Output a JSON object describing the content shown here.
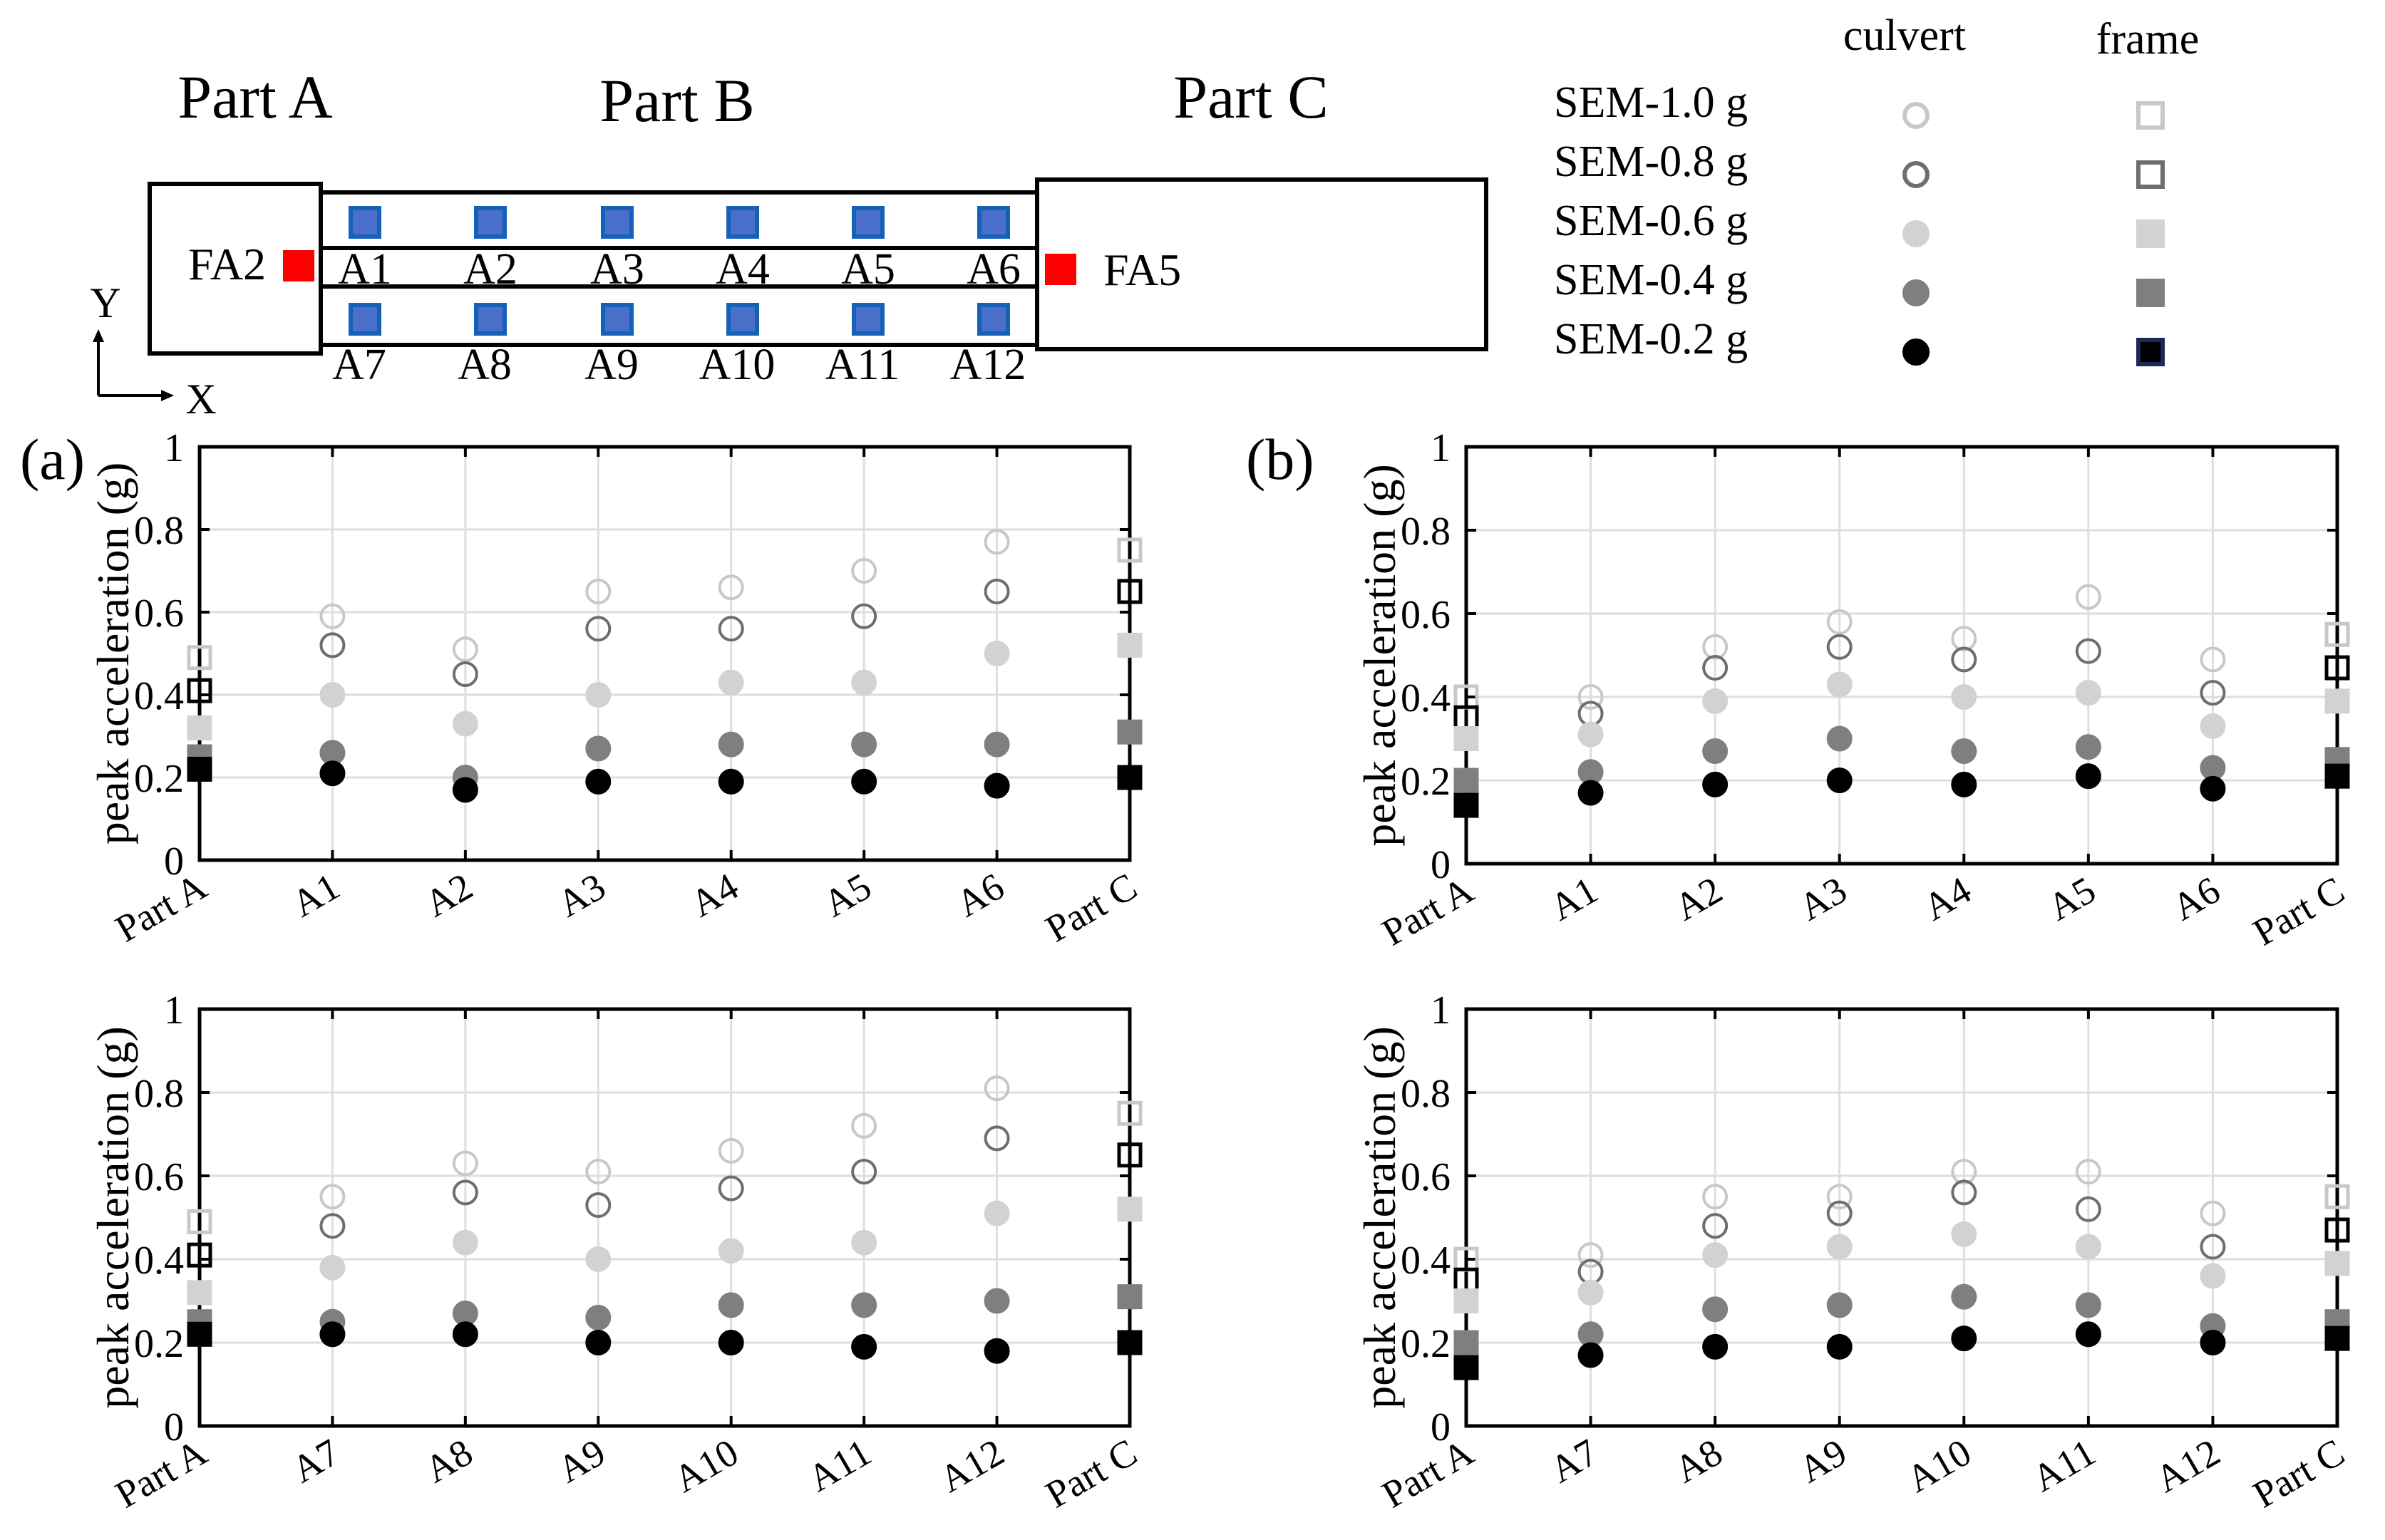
{
  "legend": {
    "col_headers": [
      "culvert",
      "frame"
    ],
    "rows": [
      "SEM-1.0 g",
      "SEM-0.8 g",
      "SEM-0.6 g",
      "SEM-0.4 g",
      "SEM-0.2 g"
    ]
  },
  "diagram": {
    "part_labels": [
      "Part A",
      "Part B",
      "Part C"
    ],
    "fa_labels": [
      "FA2",
      "FA5"
    ],
    "top_row_labels": [
      "A1",
      "A2",
      "A3",
      "A4",
      "A5",
      "A6"
    ],
    "bottom_row_labels": [
      "A7",
      "A8",
      "A9",
      "A10",
      "A11",
      "A12"
    ],
    "axis_labels": [
      "Y",
      "X"
    ]
  },
  "panel_labels": [
    "(a)",
    "(b)"
  ],
  "series_styles": [
    {
      "name": "SEM-1.0 g",
      "circle_fill": "none",
      "circle_stroke": "#c8c8c8",
      "square_fill": "none",
      "square_stroke": "#c8c8c8"
    },
    {
      "name": "SEM-0.8 g",
      "circle_fill": "none",
      "circle_stroke": "#6e6e6e",
      "square_fill": "none",
      "square_stroke": "#000000"
    },
    {
      "name": "SEM-0.6 g",
      "circle_fill": "#d2d2d2",
      "circle_stroke": "#d2d2d2",
      "square_fill": "#d2d2d2",
      "square_stroke": "#d2d2d2"
    },
    {
      "name": "SEM-0.4 g",
      "circle_fill": "#7f7f7f",
      "circle_stroke": "#7f7f7f",
      "square_fill": "#7f7f7f",
      "square_stroke": "#7f7f7f"
    },
    {
      "name": "SEM-0.2 g",
      "circle_fill": "#000000",
      "circle_stroke": "#000000",
      "square_fill": "#000000",
      "square_stroke": "#000000"
    }
  ],
  "chart_data": [
    {
      "type": "scatter",
      "panel": "(a) top",
      "ylabel": "peak acceleration (g)",
      "ylim": [
        0,
        1
      ],
      "yticks": [
        "0",
        "0.2",
        "0.4",
        "0.6",
        "0.8",
        "1"
      ],
      "grid": true,
      "categories": [
        "Part A",
        "A1",
        "A2",
        "A3",
        "A4",
        "A5",
        "A6",
        "Part C"
      ],
      "series": [
        {
          "name": "SEM-1.0 g",
          "values": [
            0.49,
            0.59,
            0.51,
            0.65,
            0.66,
            0.7,
            0.77,
            0.75
          ]
        },
        {
          "name": "SEM-0.8 g",
          "values": [
            0.41,
            0.52,
            0.45,
            0.56,
            0.56,
            0.59,
            0.65,
            0.65
          ]
        },
        {
          "name": "SEM-0.6 g",
          "values": [
            0.32,
            0.4,
            0.33,
            0.4,
            0.43,
            0.43,
            0.5,
            0.52
          ]
        },
        {
          "name": "SEM-0.4 g",
          "values": [
            0.25,
            0.26,
            0.2,
            0.27,
            0.28,
            0.28,
            0.28,
            0.31
          ]
        },
        {
          "name": "SEM-0.2 g",
          "values": [
            0.22,
            0.21,
            0.17,
            0.19,
            0.19,
            0.19,
            0.18,
            0.2
          ]
        }
      ]
    },
    {
      "type": "scatter",
      "panel": "(b) top",
      "ylabel": "peak acceleration (g)",
      "ylim": [
        0,
        1
      ],
      "yticks": [
        "0",
        "0.2",
        "0.4",
        "0.6",
        "0.8",
        "1"
      ],
      "grid": true,
      "categories": [
        "Part A",
        "A1",
        "A2",
        "A3",
        "A4",
        "A5",
        "A6",
        "Part C"
      ],
      "series": [
        {
          "name": "SEM-1.0 g",
          "values": [
            0.4,
            0.4,
            0.52,
            0.58,
            0.54,
            0.64,
            0.49,
            0.55
          ]
        },
        {
          "name": "SEM-0.8 g",
          "values": [
            0.35,
            0.36,
            0.47,
            0.52,
            0.49,
            0.51,
            0.41,
            0.47
          ]
        },
        {
          "name": "SEM-0.6 g",
          "values": [
            0.3,
            0.31,
            0.39,
            0.43,
            0.4,
            0.41,
            0.33,
            0.39
          ]
        },
        {
          "name": "SEM-0.4 g",
          "values": [
            0.2,
            0.22,
            0.27,
            0.3,
            0.27,
            0.28,
            0.23,
            0.25
          ]
        },
        {
          "name": "SEM-0.2 g",
          "values": [
            0.14,
            0.17,
            0.19,
            0.2,
            0.19,
            0.21,
            0.18,
            0.21
          ]
        }
      ]
    },
    {
      "type": "scatter",
      "panel": "(a) bottom",
      "ylabel": "peak acceleration (g)",
      "ylim": [
        0,
        1
      ],
      "yticks": [
        "0",
        "0.2",
        "0.4",
        "0.6",
        "0.8",
        "1"
      ],
      "grid": true,
      "categories": [
        "Part A",
        "A7",
        "A8",
        "A9",
        "A10",
        "A11",
        "A12",
        "Part C"
      ],
      "series": [
        {
          "name": "SEM-1.0 g",
          "values": [
            0.49,
            0.55,
            0.63,
            0.61,
            0.66,
            0.72,
            0.81,
            0.75
          ]
        },
        {
          "name": "SEM-0.8 g",
          "values": [
            0.41,
            0.48,
            0.56,
            0.53,
            0.57,
            0.61,
            0.69,
            0.65
          ]
        },
        {
          "name": "SEM-0.6 g",
          "values": [
            0.32,
            0.38,
            0.44,
            0.4,
            0.42,
            0.44,
            0.51,
            0.52
          ]
        },
        {
          "name": "SEM-0.4 g",
          "values": [
            0.25,
            0.25,
            0.27,
            0.26,
            0.29,
            0.29,
            0.3,
            0.31
          ]
        },
        {
          "name": "SEM-0.2 g",
          "values": [
            0.22,
            0.22,
            0.22,
            0.2,
            0.2,
            0.19,
            0.18,
            0.2
          ]
        }
      ]
    },
    {
      "type": "scatter",
      "panel": "(b) bottom",
      "ylabel": "peak acceleration (g)",
      "ylim": [
        0,
        1
      ],
      "yticks": [
        "0",
        "0.2",
        "0.4",
        "0.6",
        "0.8",
        "1"
      ],
      "grid": true,
      "categories": [
        "Part A",
        "A7",
        "A8",
        "A9",
        "A10",
        "A11",
        "A12",
        "Part C"
      ],
      "series": [
        {
          "name": "SEM-1.0 g",
          "values": [
            0.4,
            0.41,
            0.55,
            0.55,
            0.61,
            0.61,
            0.51,
            0.55
          ]
        },
        {
          "name": "SEM-0.8 g",
          "values": [
            0.35,
            0.37,
            0.48,
            0.51,
            0.56,
            0.52,
            0.43,
            0.47
          ]
        },
        {
          "name": "SEM-0.6 g",
          "values": [
            0.3,
            0.32,
            0.41,
            0.43,
            0.46,
            0.43,
            0.36,
            0.39
          ]
        },
        {
          "name": "SEM-0.4 g",
          "values": [
            0.2,
            0.22,
            0.28,
            0.29,
            0.31,
            0.29,
            0.24,
            0.25
          ]
        },
        {
          "name": "SEM-0.2 g",
          "values": [
            0.14,
            0.17,
            0.19,
            0.19,
            0.21,
            0.22,
            0.2,
            0.21
          ]
        }
      ]
    }
  ]
}
